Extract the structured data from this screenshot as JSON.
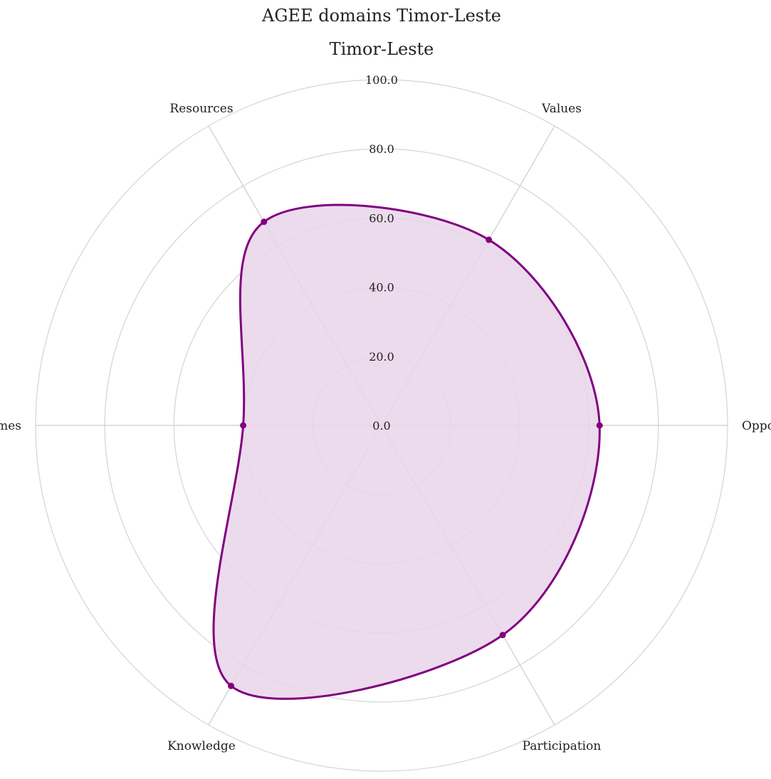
{
  "chart_data": {
    "type": "radar",
    "title": "AGEE domains Timor-Leste",
    "subtitle": "Timor-Leste",
    "axes": [
      "Opportunities",
      "Values",
      "Resources",
      "Outcomes",
      "Knowledge",
      "Participation"
    ],
    "tick_labels": [
      "0.0",
      "20.0",
      "40.0",
      "60.0",
      "80.0",
      "100.0"
    ],
    "rlim": [
      0,
      100
    ],
    "series": [
      {
        "values": [
          63,
          62,
          68,
          40,
          87,
          70
        ],
        "color": "#800080",
        "fill": "#e9d5e9"
      }
    ],
    "curve": "smooth",
    "grid": true,
    "legend": "none"
  }
}
